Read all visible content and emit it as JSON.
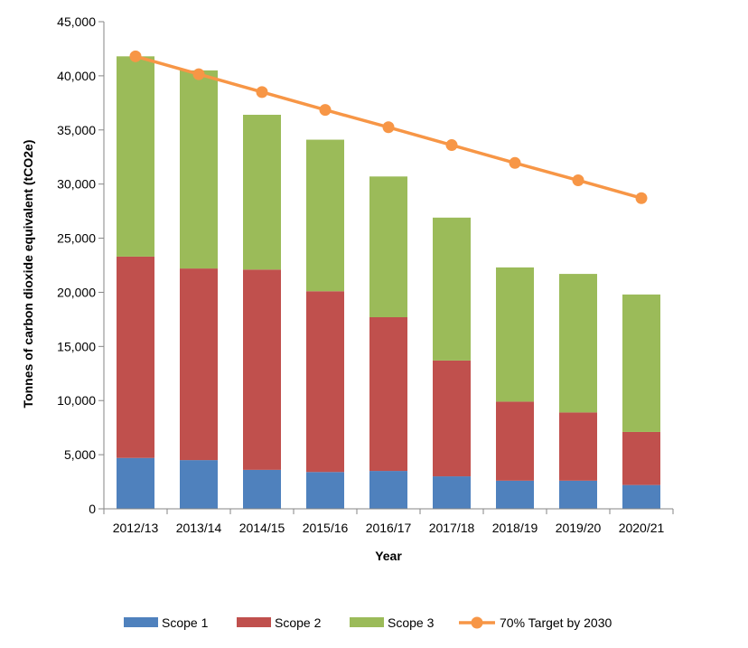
{
  "chart_data": {
    "type": "bar",
    "stacked": true,
    "title": "",
    "xlabel": "Year",
    "ylabel": "Tonnes of carbon dioxide equivalent (tCO2e)",
    "ylim": [
      0,
      45000
    ],
    "yticks": [
      0,
      5000,
      10000,
      15000,
      20000,
      25000,
      30000,
      35000,
      40000,
      45000
    ],
    "ytick_labels": [
      "0",
      "5,000",
      "10,000",
      "15,000",
      "20,000",
      "25,000",
      "30,000",
      "35,000",
      "40,000",
      "45,000"
    ],
    "grid": false,
    "legend_position": "bottom",
    "categories": [
      "2012/13",
      "2013/14",
      "2014/15",
      "2015/16",
      "2016/17",
      "2017/18",
      "2018/19",
      "2019/20",
      "2020/21"
    ],
    "series": [
      {
        "name": "Scope 1",
        "kind": "bar",
        "color": "#4f81bd",
        "values": [
          4700,
          4500,
          3600,
          3400,
          3500,
          3000,
          2600,
          2600,
          2200
        ]
      },
      {
        "name": "Scope 2",
        "kind": "bar",
        "color": "#c0504d",
        "values": [
          18600,
          17700,
          18500,
          16700,
          14200,
          10700,
          7300,
          6300,
          4900
        ]
      },
      {
        "name": "Scope 3",
        "kind": "bar",
        "color": "#9bbb59",
        "values": [
          18500,
          18300,
          14300,
          14000,
          13000,
          13200,
          12400,
          12800,
          12700
        ]
      },
      {
        "name": "70% Target by 2030",
        "kind": "line",
        "color": "#f79646",
        "values": [
          41800,
          40150,
          38500,
          36850,
          35250,
          33600,
          31950,
          30350,
          28700
        ]
      }
    ]
  }
}
